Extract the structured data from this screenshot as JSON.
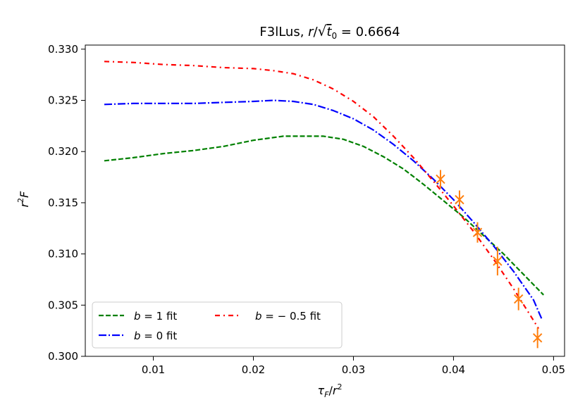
{
  "chart_data": {
    "type": "line",
    "title": "F3lLus, r/√t₀ = 0.6664",
    "title_parts": {
      "prefix": "F3lLus, ",
      "r": "r",
      "slash": "/",
      "t": "t",
      "sub": "0",
      "suffix": " = 0.6664"
    },
    "xlabel": "τ_F/r²",
    "xlabel_parts": {
      "tau": "τ",
      "tau_sub": "F",
      "slash": "/",
      "r": "r",
      "sup": "2"
    },
    "ylabel": "r²F",
    "ylabel_parts": {
      "r": "r",
      "sup": "2",
      "F": "F"
    },
    "xlim": [
      0.0032,
      0.0511
    ],
    "ylim": [
      0.3,
      0.3304
    ],
    "xticks": [
      0.01,
      0.02,
      0.03,
      0.04,
      0.05
    ],
    "xtick_labels": [
      "0.01",
      "0.02",
      "0.03",
      "0.04",
      "0.05"
    ],
    "yticks": [
      0.3,
      0.305,
      0.31,
      0.315,
      0.32,
      0.325,
      0.33
    ],
    "ytick_labels": [
      "0.300",
      "0.305",
      "0.310",
      "0.315",
      "0.320",
      "0.325",
      "0.330"
    ],
    "grid": false,
    "legend_position": "lower-left",
    "series": [
      {
        "name": "b = 1 fit",
        "legend": {
          "b": "b",
          "rest": " = 1 fit"
        },
        "color": "#008000",
        "style": "dashed",
        "x": [
          0.0051,
          0.008,
          0.011,
          0.014,
          0.017,
          0.02,
          0.023,
          0.025,
          0.027,
          0.029,
          0.031,
          0.033,
          0.035,
          0.037,
          0.039,
          0.041,
          0.043,
          0.045,
          0.047,
          0.049
        ],
        "y": [
          0.3191,
          0.3194,
          0.3198,
          0.3201,
          0.3205,
          0.3211,
          0.3215,
          0.3215,
          0.3215,
          0.3212,
          0.3205,
          0.3195,
          0.3183,
          0.3168,
          0.3152,
          0.3136,
          0.3118,
          0.31,
          0.308,
          0.306
        ]
      },
      {
        "name": "b = 0 fit",
        "legend": {
          "b": "b",
          "rest": " = 0 fit"
        },
        "color": "#0000ff",
        "style": "dashdot",
        "x": [
          0.0051,
          0.008,
          0.011,
          0.014,
          0.017,
          0.02,
          0.022,
          0.024,
          0.026,
          0.028,
          0.03,
          0.032,
          0.034,
          0.036,
          0.038,
          0.04,
          0.042,
          0.044,
          0.046,
          0.048,
          0.0488
        ],
        "y": [
          0.3246,
          0.3247,
          0.3247,
          0.3247,
          0.3248,
          0.3249,
          0.325,
          0.3249,
          0.3246,
          0.324,
          0.3232,
          0.3221,
          0.3207,
          0.3191,
          0.3173,
          0.3153,
          0.3131,
          0.3108,
          0.3083,
          0.3055,
          0.3037
        ]
      },
      {
        "name": "b = −0.5 fit",
        "legend": {
          "b": "b",
          "rest": " = − 0.5 fit"
        },
        "color": "#ff0000",
        "style": "dashdot-sparse",
        "x": [
          0.0051,
          0.008,
          0.011,
          0.014,
          0.017,
          0.02,
          0.022,
          0.024,
          0.026,
          0.028,
          0.03,
          0.032,
          0.034,
          0.036,
          0.038,
          0.04,
          0.042,
          0.044,
          0.046,
          0.048,
          0.0485
        ],
        "y": [
          0.3288,
          0.3287,
          0.3285,
          0.3284,
          0.3282,
          0.3281,
          0.3279,
          0.3276,
          0.327,
          0.3261,
          0.3249,
          0.3234,
          0.3215,
          0.3194,
          0.3171,
          0.3147,
          0.3122,
          0.3095,
          0.3066,
          0.3035,
          0.3027
        ]
      }
    ],
    "data_points": {
      "color": "#ff7f0e",
      "marker": "x",
      "points": [
        {
          "x": 0.0387,
          "y": 0.3173,
          "err": 0.0009
        },
        {
          "x": 0.0406,
          "y": 0.3153,
          "err": 0.0009
        },
        {
          "x": 0.0424,
          "y": 0.3121,
          "err": 0.001
        },
        {
          "x": 0.0444,
          "y": 0.3093,
          "err": 0.0014
        },
        {
          "x": 0.0465,
          "y": 0.3056,
          "err": 0.0011
        },
        {
          "x": 0.0484,
          "y": 0.3018,
          "err": 0.001
        }
      ]
    }
  }
}
